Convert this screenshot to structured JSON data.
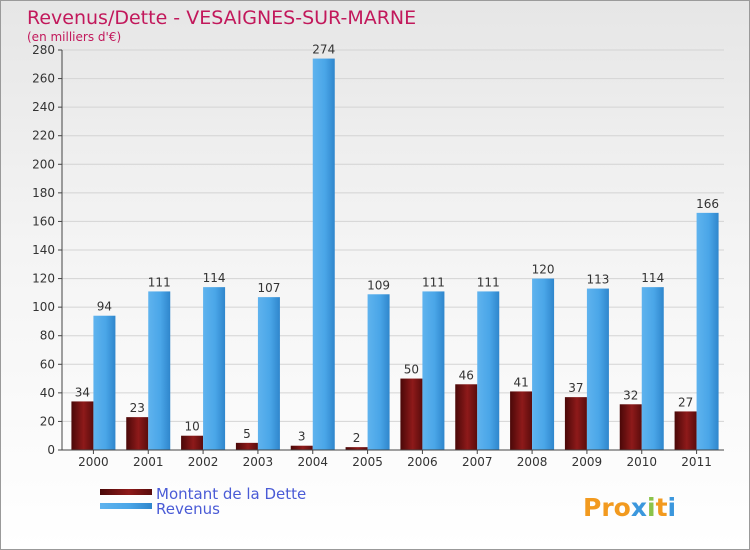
{
  "chart_data": {
    "type": "bar",
    "title": "Revenus/Dette - VESAIGNES-SUR-MARNE",
    "subtitle": "(en milliers d'€)",
    "categories": [
      "2000",
      "2001",
      "2002",
      "2003",
      "2004",
      "2005",
      "2006",
      "2007",
      "2008",
      "2009",
      "2010",
      "2011"
    ],
    "series": [
      {
        "name": "Montant de la Dette",
        "values": [
          34,
          23,
          10,
          5,
          3,
          2,
          50,
          46,
          41,
          37,
          32,
          27
        ],
        "color": "#7a1414"
      },
      {
        "name": "Revenus",
        "values": [
          94,
          111,
          114,
          107,
          274,
          109,
          111,
          111,
          120,
          113,
          114,
          166
        ],
        "color": "#3b97dd"
      }
    ],
    "ylim": [
      0,
      280
    ],
    "yticks": [
      0,
      20,
      40,
      60,
      80,
      100,
      120,
      140,
      160,
      180,
      200,
      220,
      240,
      260,
      280
    ],
    "grid": true,
    "legend_position": "bottom-left"
  },
  "logo": {
    "text": "Proxiti"
  }
}
